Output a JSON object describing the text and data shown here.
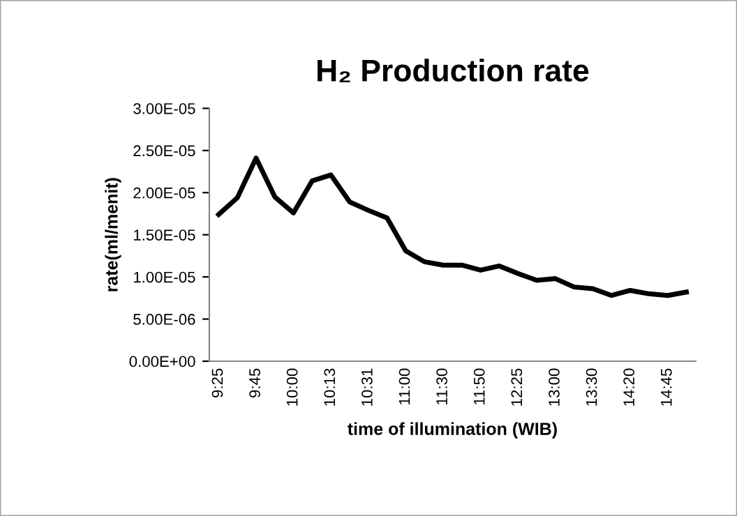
{
  "chart_data": {
    "type": "line",
    "title": "H₂ Production rate",
    "xlabel": "time of illumination (WIB)",
    "ylabel": "rate(ml/menit)",
    "categories": [
      "9:25",
      null,
      "9:45",
      null,
      "10:00",
      null,
      "10:13",
      null,
      "10:31",
      null,
      "11:00",
      null,
      "11:30",
      null,
      "11:50",
      null,
      "12:25",
      null,
      "13:00",
      null,
      "13:30",
      null,
      "14:20",
      null,
      "14:45",
      null
    ],
    "series": [
      {
        "color": "#000000",
        "values": [
          1.74e-05,
          1.94e-05,
          2.41e-05,
          1.95e-05,
          1.76e-05,
          2.14e-05,
          2.21e-05,
          1.89e-05,
          1.79e-05,
          1.7e-05,
          1.31e-05,
          1.18e-05,
          1.14e-05,
          1.14e-05,
          1.08e-05,
          1.13e-05,
          1.04e-05,
          9.6e-06,
          9.8e-06,
          8.8e-06,
          8.6e-06,
          7.8e-06,
          8.4e-06,
          8e-06,
          7.8e-06,
          8.2e-06
        ]
      }
    ],
    "ylim": [
      0,
      3e-05
    ],
    "yticks": [
      {
        "value": 0,
        "label": "0.00E+00"
      },
      {
        "value": 5e-06,
        "label": "5.00E-06"
      },
      {
        "value": 1e-05,
        "label": "1.00E-05"
      },
      {
        "value": 1.5e-05,
        "label": "1.50E-05"
      },
      {
        "value": 2e-05,
        "label": "2.00E-05"
      },
      {
        "value": 2.5e-05,
        "label": "2.50E-05"
      },
      {
        "value": 3e-05,
        "label": "3.00E-05"
      }
    ],
    "grid": false,
    "marker": "none",
    "line_style": "solid",
    "legend": false
  }
}
